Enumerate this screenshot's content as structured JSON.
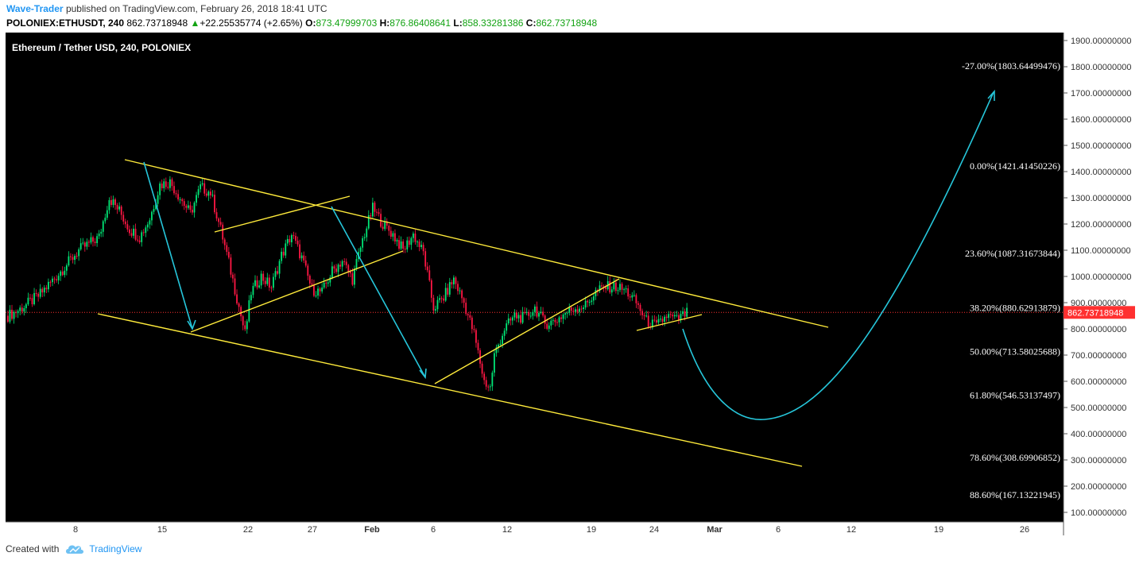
{
  "header": {
    "author": "Wave-Trader",
    "published_text": "published on TradingView.com, February 26, 2018 18:41 UTC",
    "symbol": "POLONIEX:ETHUSDT, 240",
    "last": "862.73718948",
    "change": "+22.25535774 (+2.65%)",
    "o_label": "O:",
    "o": "873.47999703",
    "h_label": "H:",
    "h": "876.86408641",
    "l_label": "L:",
    "l": "858.33281386",
    "c_label": "C:",
    "c": "862.73718948"
  },
  "footer": {
    "created_with": "Created with",
    "brand": "TradingView"
  },
  "colors": {
    "background": "#000000",
    "up": "#00e676",
    "down": "#ff1744",
    "trend": "#ffeb3b",
    "arrow": "#26c6da",
    "price_tag": "#ff3030"
  },
  "chart_data": {
    "type": "candlestick",
    "title": "Ethereum / Tether USD, 240, POLONIEX",
    "y_axis": {
      "side": "right",
      "range": [
        50,
        1910
      ],
      "ticks": [
        "1900.00000000",
        "1800.00000000",
        "1700.00000000",
        "1600.00000000",
        "1500.00000000",
        "1400.00000000",
        "1300.00000000",
        "1200.00000000",
        "1100.00000000",
        "1000.00000000",
        "900.00000000",
        "800.00000000",
        "700.00000000",
        "600.00000000",
        "500.00000000",
        "400.00000000",
        "300.00000000",
        "200.00000000",
        "100.00000000"
      ]
    },
    "x_axis": {
      "ticks": [
        "8",
        "15",
        "22",
        "27",
        "Feb",
        "6",
        "12",
        "19",
        "24",
        "Mar",
        "6",
        "12",
        "19",
        "26"
      ]
    },
    "current_price": {
      "value": 862.73718948,
      "label": "862.73718948"
    },
    "fib_levels": [
      {
        "label": "-27.00%(1803.64499476)",
        "value": 1803.64499476
      },
      {
        "label": "0.00%(1421.41450226)",
        "value": 1421.41450226
      },
      {
        "label": "23.60%(1087.31673844)",
        "value": 1087.31673844
      },
      {
        "label": "38.20%(880.62913879)",
        "value": 880.62913879
      },
      {
        "label": "50.00%(713.58025688)",
        "value": 713.58025688
      },
      {
        "label": "61.80%(546.53137497)",
        "value": 546.53137497
      },
      {
        "label": "78.60%(308.69906852)",
        "value": 308.69906852
      },
      {
        "label": "88.60%(167.13221945)",
        "value": 167.13221945
      }
    ],
    "price_path": [
      [
        0,
        850
      ],
      [
        5,
        870
      ],
      [
        15,
        925
      ],
      [
        25,
        1010
      ],
      [
        35,
        1100
      ],
      [
        45,
        1150
      ],
      [
        50,
        1300
      ],
      [
        55,
        1250
      ],
      [
        60,
        1180
      ],
      [
        65,
        1150
      ],
      [
        70,
        1220
      ],
      [
        75,
        1350
      ],
      [
        80,
        1360
      ],
      [
        85,
        1300
      ],
      [
        90,
        1240
      ],
      [
        95,
        1340
      ],
      [
        100,
        1320
      ],
      [
        105,
        1180
      ],
      [
        110,
        1020
      ],
      [
        115,
        850
      ],
      [
        117,
        780
      ],
      [
        120,
        940
      ],
      [
        125,
        1000
      ],
      [
        130,
        960
      ],
      [
        135,
        1080
      ],
      [
        140,
        1160
      ],
      [
        145,
        1070
      ],
      [
        150,
        950
      ],
      [
        155,
        940
      ],
      [
        160,
        1020
      ],
      [
        165,
        1060
      ],
      [
        170,
        990
      ],
      [
        175,
        1140
      ],
      [
        180,
        1260
      ],
      [
        185,
        1200
      ],
      [
        190,
        1160
      ],
      [
        195,
        1100
      ],
      [
        200,
        1160
      ],
      [
        205,
        1090
      ],
      [
        210,
        880
      ],
      [
        215,
        920
      ],
      [
        220,
        990
      ],
      [
        225,
        900
      ],
      [
        230,
        780
      ],
      [
        235,
        600
      ],
      [
        238,
        575
      ],
      [
        240,
        700
      ],
      [
        245,
        800
      ],
      [
        250,
        850
      ],
      [
        255,
        840
      ],
      [
        260,
        880
      ],
      [
        265,
        820
      ],
      [
        270,
        830
      ],
      [
        275,
        860
      ],
      [
        280,
        880
      ],
      [
        285,
        890
      ],
      [
        290,
        940
      ],
      [
        295,
        960
      ],
      [
        300,
        960
      ],
      [
        305,
        945
      ],
      [
        310,
        900
      ],
      [
        315,
        830
      ],
      [
        320,
        810
      ],
      [
        325,
        850
      ],
      [
        330,
        835
      ],
      [
        335,
        860
      ]
    ]
  }
}
